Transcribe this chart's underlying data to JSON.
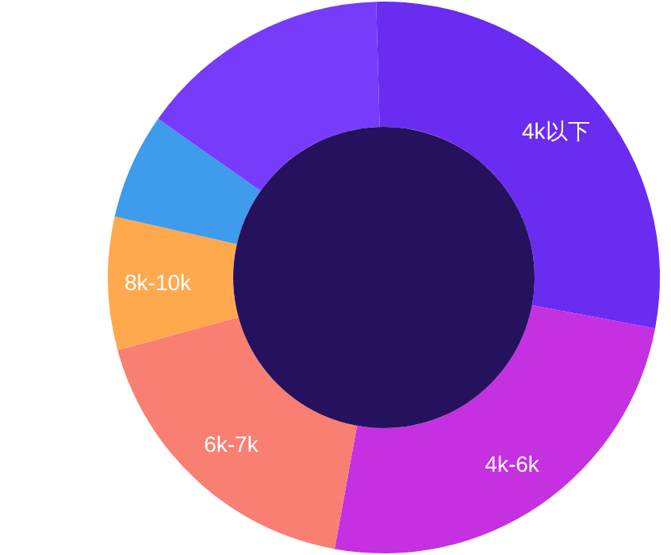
{
  "chart_data": {
    "type": "donut",
    "categories": [
      "4k以下",
      "4k-6k",
      "6k-7k",
      "8k-10k",
      null,
      null
    ],
    "values": [
      28.4,
      24.9,
      17.9,
      7.8,
      6.2,
      14.8
    ],
    "colors": [
      "#6a2cf0",
      "#c530e0",
      "#f97f72",
      "#ffa94f",
      "#3f9bec",
      "#773bfc"
    ]
  }
}
